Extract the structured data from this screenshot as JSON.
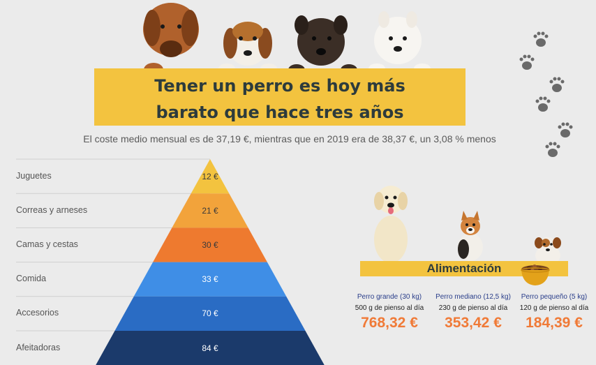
{
  "title": {
    "line1": "Tener un perro es hoy más",
    "line2": "barato que hace tres años"
  },
  "subtitle": "El coste medio mensual es de 37,19 €, mientras que en 2019 era de 38,37 €, un 3,08 % menos",
  "pyramid": [
    {
      "label": "Juguetes",
      "price": "12 €",
      "color": "#f3c33f",
      "text_color": "#3a3a3a"
    },
    {
      "label": "Correas y arneses",
      "price": "21 €",
      "color": "#f2a33b",
      "text_color": "#3a3a3a"
    },
    {
      "label": "Camas y cestas",
      "price": "30 €",
      "color": "#ee7a2f",
      "text_color": "#3a3a3a"
    },
    {
      "label": "Comida",
      "price": "33 €",
      "color": "#3f8ee6",
      "text_color": "#ffffff"
    },
    {
      "label": "Accesorios",
      "price": "70 €",
      "color": "#2a6cc4",
      "text_color": "#ffffff"
    },
    {
      "label": "Afeitadoras",
      "price": "84 €",
      "color": "#1b3a6b",
      "text_color": "#ffffff"
    }
  ],
  "food": {
    "title": "Alimentación",
    "items": [
      {
        "size": "Perro grande (30 kg)",
        "ration": "500 g de pienso al día",
        "price": "768,32 €"
      },
      {
        "size": "Perro mediano (12,5 kg)",
        "ration": "230 g de pienso al día",
        "price": "353,42 €"
      },
      {
        "size": "Perro pequeño (5 kg)",
        "ration": "120 g de pienso al día",
        "price": "184,39 €"
      }
    ]
  },
  "colors": {
    "accent": "#f3c33f",
    "price": "#f07a37",
    "title": "#2d3b3c"
  }
}
